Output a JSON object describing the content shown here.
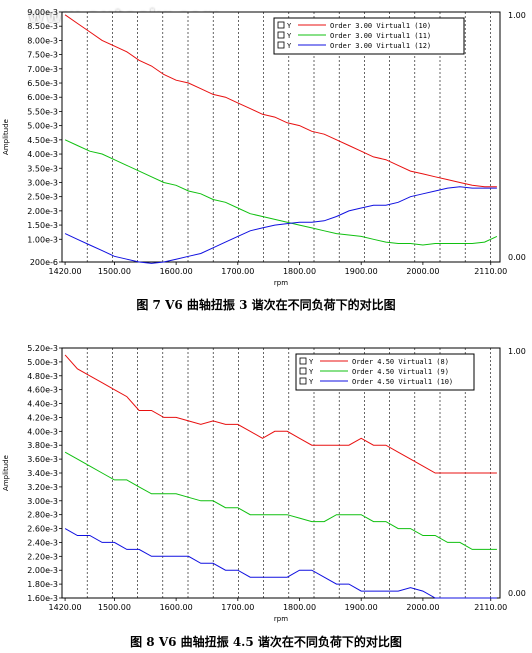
{
  "watermark": "www.autoskr.com",
  "chart_data": [
    {
      "type": "line",
      "caption": "图 7   V6 曲轴扭振 3 谐次在不同负荷下的对比图",
      "xlabel": "rpm",
      "ylabel": "Amplitude",
      "xlim": [
        1415,
        2125
      ],
      "ylim": [
        0.0002,
        0.009
      ],
      "x_ticks": [
        1420,
        1500,
        1600,
        1700,
        1800,
        1900,
        2000,
        2110
      ],
      "x_tick_labels": [
        "1420.00",
        "1500.00",
        "1600.00",
        "1700.00",
        "1800.00",
        "1900.00",
        "2000.00",
        "2110.00"
      ],
      "y_ticks": [
        0.0002,
        0.001,
        0.0015,
        0.002,
        0.0025,
        0.003,
        0.0035,
        0.004,
        0.0045,
        0.005,
        0.0055,
        0.006,
        0.0065,
        0.007,
        0.0075,
        0.008,
        0.0085,
        0.009
      ],
      "y_tick_labels": [
        "200e-6",
        "1.00e-3",
        "1.50e-3",
        "2.00e-3",
        "2.50e-3",
        "3.00e-3",
        "3.50e-3",
        "4.00e-3",
        "4.50e-3",
        "5.00e-3",
        "5.50e-3",
        "6.00e-3",
        "6.50e-3",
        "7.00e-3",
        "7.50e-3",
        "8.00e-3",
        "8.50e-3",
        "9.00e-3"
      ],
      "right_ticks": [
        "1.00",
        "0.00"
      ],
      "grid": true,
      "legend_position": "top-right",
      "legend_checkbox": "Y",
      "series": [
        {
          "name": "Order 3.00 Virtual1 (10)",
          "color": "#e81010",
          "x": [
            1420,
            1440,
            1460,
            1480,
            1500,
            1520,
            1540,
            1560,
            1580,
            1600,
            1620,
            1640,
            1660,
            1680,
            1700,
            1720,
            1740,
            1760,
            1780,
            1800,
            1820,
            1840,
            1860,
            1880,
            1900,
            1920,
            1940,
            1960,
            1980,
            2000,
            2020,
            2040,
            2060,
            2080,
            2100,
            2120
          ],
          "y": [
            0.0089,
            0.0086,
            0.0083,
            0.008,
            0.0078,
            0.0076,
            0.0073,
            0.0071,
            0.0068,
            0.0066,
            0.0065,
            0.0063,
            0.0061,
            0.006,
            0.0058,
            0.0056,
            0.0054,
            0.0053,
            0.0051,
            0.005,
            0.0048,
            0.0047,
            0.0045,
            0.0043,
            0.0041,
            0.0039,
            0.0038,
            0.0036,
            0.0034,
            0.0033,
            0.0032,
            0.0031,
            0.003,
            0.0029,
            0.00285,
            0.00285
          ]
        },
        {
          "name": "Order 3.00 Virtual1 (11)",
          "color": "#10c010",
          "x": [
            1420,
            1440,
            1460,
            1480,
            1500,
            1520,
            1540,
            1560,
            1580,
            1600,
            1620,
            1640,
            1660,
            1680,
            1700,
            1720,
            1740,
            1760,
            1780,
            1800,
            1820,
            1840,
            1860,
            1880,
            1900,
            1920,
            1940,
            1960,
            1980,
            2000,
            2020,
            2040,
            2060,
            2080,
            2100,
            2120
          ],
          "y": [
            0.0045,
            0.0043,
            0.0041,
            0.004,
            0.0038,
            0.0036,
            0.0034,
            0.0032,
            0.003,
            0.0029,
            0.0027,
            0.0026,
            0.0024,
            0.0023,
            0.0021,
            0.0019,
            0.0018,
            0.0017,
            0.0016,
            0.0015,
            0.0014,
            0.0013,
            0.0012,
            0.00115,
            0.0011,
            0.001,
            0.0009,
            0.00085,
            0.00085,
            0.0008,
            0.00085,
            0.00085,
            0.00085,
            0.00085,
            0.0009,
            0.0011
          ]
        },
        {
          "name": "Order 3.00 Virtual1 (12)",
          "color": "#1010e0",
          "x": [
            1420,
            1440,
            1460,
            1480,
            1500,
            1520,
            1540,
            1560,
            1580,
            1600,
            1620,
            1640,
            1660,
            1680,
            1700,
            1720,
            1740,
            1760,
            1780,
            1800,
            1820,
            1840,
            1860,
            1880,
            1900,
            1920,
            1940,
            1960,
            1980,
            2000,
            2020,
            2040,
            2060,
            2080,
            2100,
            2120
          ],
          "y": [
            0.0012,
            0.001,
            0.0008,
            0.0006,
            0.0004,
            0.0003,
            0.0002,
            0.00015,
            0.0002,
            0.0003,
            0.0004,
            0.0005,
            0.0007,
            0.0009,
            0.0011,
            0.0013,
            0.0014,
            0.0015,
            0.00155,
            0.0016,
            0.0016,
            0.00165,
            0.0018,
            0.002,
            0.0021,
            0.0022,
            0.0022,
            0.0023,
            0.0025,
            0.0026,
            0.0027,
            0.0028,
            0.00285,
            0.0028,
            0.0028,
            0.0028
          ]
        }
      ]
    },
    {
      "type": "line",
      "caption": "图 8   V6 曲轴扭振 4.5 谐次在不同负荷下的对比图",
      "xlabel": "rpm",
      "ylabel": "Amplitude",
      "xlim": [
        1415,
        2125
      ],
      "ylim": [
        0.0016,
        0.0052
      ],
      "x_ticks": [
        1420,
        1500,
        1600,
        1700,
        1800,
        1900,
        2000,
        2110
      ],
      "x_tick_labels": [
        "1420.00",
        "1500.00",
        "1600.00",
        "1700.00",
        "1800.00",
        "1900.00",
        "2000.00",
        "2110.00"
      ],
      "y_ticks": [
        0.0016,
        0.0018,
        0.002,
        0.0022,
        0.0024,
        0.0026,
        0.0028,
        0.003,
        0.0032,
        0.0034,
        0.0036,
        0.0038,
        0.004,
        0.0042,
        0.0044,
        0.0046,
        0.0048,
        0.005,
        0.0052
      ],
      "y_tick_labels": [
        "1.60e-3",
        "1.80e-3",
        "2.00e-3",
        "2.20e-3",
        "2.40e-3",
        "2.60e-3",
        "2.80e-3",
        "3.00e-3",
        "3.20e-3",
        "3.40e-3",
        "3.60e-3",
        "3.80e-3",
        "4.00e-3",
        "4.20e-3",
        "4.40e-3",
        "4.60e-3",
        "4.80e-3",
        "5.00e-3",
        "5.20e-3"
      ],
      "right_ticks": [
        "1.00",
        "0.00"
      ],
      "grid": true,
      "legend_position": "top-right",
      "legend_checkbox": "Y",
      "series": [
        {
          "name": "Order 4.50 Virtual1 (8)",
          "color": "#e81010",
          "x": [
            1420,
            1440,
            1460,
            1480,
            1500,
            1520,
            1540,
            1560,
            1580,
            1600,
            1620,
            1640,
            1660,
            1680,
            1700,
            1720,
            1740,
            1760,
            1780,
            1800,
            1820,
            1840,
            1860,
            1880,
            1900,
            1920,
            1940,
            1960,
            1980,
            2000,
            2020,
            2040,
            2060,
            2080,
            2100,
            2120
          ],
          "y": [
            0.0051,
            0.0049,
            0.0048,
            0.0047,
            0.0046,
            0.0045,
            0.0043,
            0.0043,
            0.0042,
            0.0042,
            0.00415,
            0.0041,
            0.00415,
            0.0041,
            0.0041,
            0.004,
            0.0039,
            0.004,
            0.004,
            0.0039,
            0.0038,
            0.0038,
            0.0038,
            0.0038,
            0.0039,
            0.0038,
            0.0038,
            0.0037,
            0.0036,
            0.0035,
            0.0034,
            0.0034,
            0.0034,
            0.0034,
            0.0034,
            0.0034
          ]
        },
        {
          "name": "Order 4.50 Virtual1 (9)",
          "color": "#10c010",
          "x": [
            1420,
            1440,
            1460,
            1480,
            1500,
            1520,
            1540,
            1560,
            1580,
            1600,
            1620,
            1640,
            1660,
            1680,
            1700,
            1720,
            1740,
            1760,
            1780,
            1800,
            1820,
            1840,
            1860,
            1880,
            1900,
            1920,
            1940,
            1960,
            1980,
            2000,
            2020,
            2040,
            2060,
            2080,
            2100,
            2120
          ],
          "y": [
            0.0037,
            0.0036,
            0.0035,
            0.0034,
            0.0033,
            0.0033,
            0.0032,
            0.0031,
            0.0031,
            0.0031,
            0.00305,
            0.003,
            0.003,
            0.0029,
            0.0029,
            0.0028,
            0.0028,
            0.0028,
            0.0028,
            0.00275,
            0.0027,
            0.0027,
            0.0028,
            0.0028,
            0.0028,
            0.0027,
            0.0027,
            0.0026,
            0.0026,
            0.0025,
            0.0025,
            0.0024,
            0.0024,
            0.0023,
            0.0023,
            0.0023
          ]
        },
        {
          "name": "Order 4.50 Virtual1 (10)",
          "color": "#1010e0",
          "x": [
            1420,
            1440,
            1460,
            1480,
            1500,
            1520,
            1540,
            1560,
            1580,
            1600,
            1620,
            1640,
            1660,
            1680,
            1700,
            1720,
            1740,
            1760,
            1780,
            1800,
            1820,
            1840,
            1860,
            1880,
            1900,
            1920,
            1940,
            1960,
            1980,
            2000,
            2020,
            2040,
            2060,
            2080,
            2100,
            2120
          ],
          "y": [
            0.0026,
            0.0025,
            0.0025,
            0.0024,
            0.0024,
            0.0023,
            0.0023,
            0.0022,
            0.0022,
            0.0022,
            0.0022,
            0.0021,
            0.0021,
            0.002,
            0.002,
            0.0019,
            0.0019,
            0.0019,
            0.0019,
            0.002,
            0.002,
            0.0019,
            0.0018,
            0.0018,
            0.0017,
            0.0017,
            0.0017,
            0.0017,
            0.00175,
            0.0017,
            0.0016,
            0.0016,
            0.0016,
            0.0016,
            0.0016,
            0.0016
          ]
        }
      ]
    }
  ]
}
